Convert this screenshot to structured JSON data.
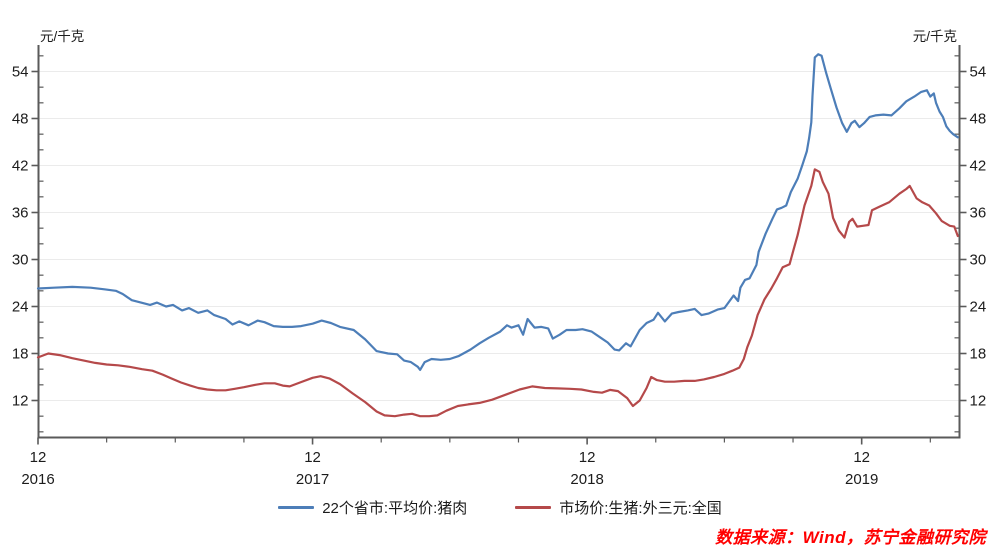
{
  "unit_label_left": "元/千克",
  "unit_label_right": "元/千克",
  "source_note": "数据来源：Wind，苏宁金融研究院",
  "colors": {
    "series_blue": "#4d7eb8",
    "series_red": "#b5494a",
    "axis": "#5a5a5a",
    "gridline": "#ebebeb",
    "tick_text": "#1c1c1c",
    "source_text": "#ff0000"
  },
  "chart_data": {
    "type": "line",
    "title": "",
    "ylabel": "元/千克",
    "grid": "horizontal-major",
    "legend_position": "bottom-center",
    "x_axis": {
      "month_label": "12",
      "years": [
        "2016",
        "2017",
        "2018",
        "2019"
      ],
      "major_tick_months": [
        0,
        12,
        24,
        36
      ],
      "minor_tick_step_months": 3,
      "minor_tick_last_month": 39,
      "x_start": "2016-12",
      "x_end": "2020-04"
    },
    "y_axis": {
      "label_min": 12,
      "label_max": 54,
      "major_step": 6,
      "minor_step": 2,
      "minor_min": 8,
      "minor_max": 56,
      "value_at_bottom": 7.3,
      "value_at_top": 57.4
    },
    "series": [
      {
        "name": "22个省市:平均价:猪肉",
        "color": "#4d7eb8",
        "points": [
          [
            0,
            26.3
          ],
          [
            0.7,
            26.4
          ],
          [
            1.5,
            26.5
          ],
          [
            2.3,
            26.4
          ],
          [
            2.9,
            26.2
          ],
          [
            3.4,
            26.0
          ],
          [
            3.7,
            25.6
          ],
          [
            4.1,
            24.8
          ],
          [
            4.5,
            24.5
          ],
          [
            4.9,
            24.2
          ],
          [
            5.2,
            24.5
          ],
          [
            5.6,
            24.0
          ],
          [
            5.9,
            24.2
          ],
          [
            6.3,
            23.5
          ],
          [
            6.6,
            23.8
          ],
          [
            7.0,
            23.2
          ],
          [
            7.4,
            23.5
          ],
          [
            7.7,
            22.9
          ],
          [
            8.2,
            22.4
          ],
          [
            8.5,
            21.7
          ],
          [
            8.8,
            22.1
          ],
          [
            9.2,
            21.6
          ],
          [
            9.6,
            22.2
          ],
          [
            9.9,
            22.0
          ],
          [
            10.3,
            21.5
          ],
          [
            10.7,
            21.4
          ],
          [
            11.1,
            21.4
          ],
          [
            11.5,
            21.5
          ],
          [
            12.0,
            21.8
          ],
          [
            12.4,
            22.2
          ],
          [
            12.8,
            21.9
          ],
          [
            13.2,
            21.4
          ],
          [
            13.8,
            21.0
          ],
          [
            14.3,
            19.8
          ],
          [
            14.8,
            18.3
          ],
          [
            15.3,
            18.0
          ],
          [
            15.7,
            17.9
          ],
          [
            16.0,
            17.1
          ],
          [
            16.3,
            16.9
          ],
          [
            16.6,
            16.3
          ],
          [
            16.7,
            15.9
          ],
          [
            16.9,
            16.9
          ],
          [
            17.2,
            17.3
          ],
          [
            17.6,
            17.2
          ],
          [
            18.0,
            17.3
          ],
          [
            18.4,
            17.7
          ],
          [
            18.9,
            18.5
          ],
          [
            19.3,
            19.3
          ],
          [
            19.7,
            20.0
          ],
          [
            20.2,
            20.8
          ],
          [
            20.5,
            21.6
          ],
          [
            20.7,
            21.3
          ],
          [
            21.0,
            21.6
          ],
          [
            21.2,
            20.4
          ],
          [
            21.4,
            22.4
          ],
          [
            21.7,
            21.3
          ],
          [
            22.0,
            21.4
          ],
          [
            22.3,
            21.2
          ],
          [
            22.5,
            19.9
          ],
          [
            22.8,
            20.4
          ],
          [
            23.1,
            21.0
          ],
          [
            23.5,
            21.0
          ],
          [
            23.8,
            21.1
          ],
          [
            24.2,
            20.8
          ],
          [
            24.6,
            20.0
          ],
          [
            24.9,
            19.4
          ],
          [
            25.2,
            18.5
          ],
          [
            25.4,
            18.4
          ],
          [
            25.7,
            19.3
          ],
          [
            25.9,
            18.9
          ],
          [
            26.3,
            21.0
          ],
          [
            26.6,
            21.9
          ],
          [
            26.9,
            22.3
          ],
          [
            27.1,
            23.2
          ],
          [
            27.4,
            22.1
          ],
          [
            27.7,
            23.1
          ],
          [
            28.0,
            23.3
          ],
          [
            28.4,
            23.5
          ],
          [
            28.7,
            23.7
          ],
          [
            29.0,
            22.9
          ],
          [
            29.3,
            23.1
          ],
          [
            29.7,
            23.6
          ],
          [
            30.0,
            23.8
          ],
          [
            30.4,
            25.4
          ],
          [
            30.6,
            24.7
          ],
          [
            30.7,
            26.4
          ],
          [
            30.9,
            27.4
          ],
          [
            31.1,
            27.6
          ],
          [
            31.4,
            29.3
          ],
          [
            31.5,
            31.0
          ],
          [
            31.8,
            33.3
          ],
          [
            32.1,
            35.2
          ],
          [
            32.3,
            36.4
          ],
          [
            32.5,
            36.6
          ],
          [
            32.7,
            36.9
          ],
          [
            32.9,
            38.6
          ],
          [
            33.2,
            40.3
          ],
          [
            33.4,
            42.0
          ],
          [
            33.6,
            43.8
          ],
          [
            33.7,
            45.5
          ],
          [
            33.8,
            47.5
          ],
          [
            33.85,
            50.9
          ],
          [
            33.95,
            55.8
          ],
          [
            34.1,
            56.2
          ],
          [
            34.25,
            56.0
          ],
          [
            34.45,
            53.8
          ],
          [
            34.65,
            51.8
          ],
          [
            34.9,
            49.4
          ],
          [
            35.15,
            47.4
          ],
          [
            35.35,
            46.3
          ],
          [
            35.55,
            47.4
          ],
          [
            35.7,
            47.7
          ],
          [
            35.9,
            46.9
          ],
          [
            36.1,
            47.4
          ],
          [
            36.35,
            48.2
          ],
          [
            36.6,
            48.4
          ],
          [
            36.95,
            48.5
          ],
          [
            37.3,
            48.4
          ],
          [
            37.65,
            49.3
          ],
          [
            37.95,
            50.2
          ],
          [
            38.3,
            50.8
          ],
          [
            38.6,
            51.4
          ],
          [
            38.85,
            51.6
          ],
          [
            39.0,
            50.8
          ],
          [
            39.15,
            51.2
          ],
          [
            39.25,
            50.0
          ],
          [
            39.4,
            48.9
          ],
          [
            39.55,
            48.2
          ],
          [
            39.7,
            47.0
          ],
          [
            39.85,
            46.4
          ],
          [
            40.0,
            46.0
          ],
          [
            40.2,
            45.6
          ]
        ]
      },
      {
        "name": "市场价:生猪:外三元:全国",
        "color": "#b5494a",
        "points": [
          [
            0,
            17.5
          ],
          [
            0.45,
            18.0
          ],
          [
            0.95,
            17.8
          ],
          [
            1.5,
            17.4
          ],
          [
            2.0,
            17.1
          ],
          [
            2.5,
            16.8
          ],
          [
            3.0,
            16.6
          ],
          [
            3.5,
            16.5
          ],
          [
            4.0,
            16.3
          ],
          [
            4.55,
            16.0
          ],
          [
            5.0,
            15.8
          ],
          [
            5.45,
            15.3
          ],
          [
            5.85,
            14.8
          ],
          [
            6.25,
            14.3
          ],
          [
            6.65,
            13.9
          ],
          [
            7.0,
            13.6
          ],
          [
            7.4,
            13.4
          ],
          [
            7.8,
            13.3
          ],
          [
            8.2,
            13.3
          ],
          [
            8.6,
            13.5
          ],
          [
            9.0,
            13.7
          ],
          [
            9.5,
            14.0
          ],
          [
            9.9,
            14.2
          ],
          [
            10.35,
            14.2
          ],
          [
            10.7,
            13.9
          ],
          [
            11.0,
            13.8
          ],
          [
            11.45,
            14.3
          ],
          [
            12.0,
            14.9
          ],
          [
            12.35,
            15.1
          ],
          [
            12.75,
            14.8
          ],
          [
            13.2,
            14.1
          ],
          [
            13.75,
            12.9
          ],
          [
            14.3,
            11.8
          ],
          [
            14.8,
            10.6
          ],
          [
            15.15,
            10.1
          ],
          [
            15.6,
            10.0
          ],
          [
            16.0,
            10.2
          ],
          [
            16.35,
            10.3
          ],
          [
            16.7,
            10.0
          ],
          [
            17.1,
            10.0
          ],
          [
            17.45,
            10.1
          ],
          [
            17.85,
            10.7
          ],
          [
            18.35,
            11.3
          ],
          [
            18.8,
            11.5
          ],
          [
            19.3,
            11.7
          ],
          [
            19.85,
            12.1
          ],
          [
            20.5,
            12.8
          ],
          [
            21.05,
            13.4
          ],
          [
            21.6,
            13.8
          ],
          [
            22.15,
            13.6
          ],
          [
            22.7,
            13.55
          ],
          [
            23.25,
            13.5
          ],
          [
            23.75,
            13.4
          ],
          [
            24.3,
            13.1
          ],
          [
            24.65,
            13.0
          ],
          [
            25.0,
            13.35
          ],
          [
            25.35,
            13.2
          ],
          [
            25.75,
            12.3
          ],
          [
            26.0,
            11.3
          ],
          [
            26.3,
            12.0
          ],
          [
            26.6,
            13.6
          ],
          [
            26.8,
            15.0
          ],
          [
            27.05,
            14.6
          ],
          [
            27.4,
            14.4
          ],
          [
            27.8,
            14.4
          ],
          [
            28.25,
            14.5
          ],
          [
            28.7,
            14.5
          ],
          [
            29.1,
            14.7
          ],
          [
            29.55,
            15.0
          ],
          [
            30.0,
            15.4
          ],
          [
            30.35,
            15.8
          ],
          [
            30.65,
            16.2
          ],
          [
            30.85,
            17.3
          ],
          [
            31.0,
            18.8
          ],
          [
            31.2,
            20.3
          ],
          [
            31.45,
            22.9
          ],
          [
            31.75,
            24.9
          ],
          [
            32.05,
            26.3
          ],
          [
            32.3,
            27.6
          ],
          [
            32.55,
            29.0
          ],
          [
            32.85,
            29.4
          ],
          [
            33.0,
            31.0
          ],
          [
            33.2,
            33.1
          ],
          [
            33.5,
            36.9
          ],
          [
            33.8,
            39.4
          ],
          [
            33.95,
            41.5
          ],
          [
            34.15,
            41.2
          ],
          [
            34.3,
            39.9
          ],
          [
            34.55,
            38.4
          ],
          [
            34.75,
            35.3
          ],
          [
            35.0,
            33.7
          ],
          [
            35.25,
            32.8
          ],
          [
            35.45,
            34.8
          ],
          [
            35.6,
            35.2
          ],
          [
            35.8,
            34.2
          ],
          [
            36.05,
            34.3
          ],
          [
            36.3,
            34.4
          ],
          [
            36.45,
            36.3
          ],
          [
            36.75,
            36.7
          ],
          [
            37.2,
            37.3
          ],
          [
            37.65,
            38.4
          ],
          [
            37.95,
            39.0
          ],
          [
            38.1,
            39.4
          ],
          [
            38.4,
            37.8
          ],
          [
            38.65,
            37.3
          ],
          [
            38.95,
            36.9
          ],
          [
            39.25,
            35.9
          ],
          [
            39.5,
            34.9
          ],
          [
            39.85,
            34.3
          ],
          [
            40.05,
            34.2
          ],
          [
            40.2,
            33.0
          ]
        ]
      }
    ]
  }
}
